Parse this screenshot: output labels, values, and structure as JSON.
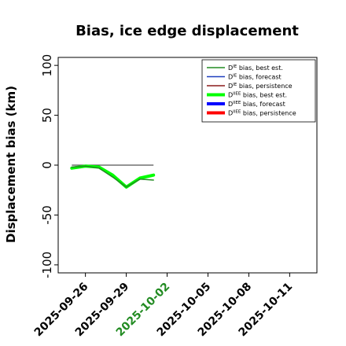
{
  "chart_data": {
    "type": "line",
    "title": "Bias, ice edge displacement",
    "ylabel": "Displacement bias (km)",
    "xlabel": "",
    "ylim": [
      -108,
      108
    ],
    "xlim": [
      "2025-09-24",
      "2025-10-13"
    ],
    "yticks": [
      -100,
      -50,
      0,
      50,
      100
    ],
    "xticks": [
      {
        "label": "2025-09-26",
        "date": "2025-09-26",
        "color": "#000000"
      },
      {
        "label": "2025-09-29",
        "date": "2025-09-29",
        "color": "#000000"
      },
      {
        "label": "2025-10-02",
        "date": "2025-10-02",
        "color": "#228b22"
      },
      {
        "label": "2025-10-05",
        "date": "2025-10-05",
        "color": "#000000"
      },
      {
        "label": "2025-10-08",
        "date": "2025-10-08",
        "color": "#000000"
      },
      {
        "label": "2025-10-11",
        "date": "2025-10-11",
        "color": "#000000"
      }
    ],
    "grid": false,
    "legend_position": "top-right",
    "series": [
      {
        "name": "D^IE bias, best est.",
        "color": "#228b22",
        "width": 1.5,
        "x": [
          "2025-09-25",
          "2025-09-26",
          "2025-09-27",
          "2025-09-28",
          "2025-09-29",
          "2025-09-30",
          "2025-10-01"
        ],
        "y": [
          -2,
          -1,
          -3,
          -12,
          -22,
          -14,
          -15
        ]
      },
      {
        "name": "D^IE bias, forecast",
        "color": "#1f3fbf",
        "width": 1.5,
        "x": [],
        "y": []
      },
      {
        "name": "D^IE bias, persistence",
        "color": "#8b1a1a",
        "width": 1.5,
        "x": [],
        "y": []
      },
      {
        "name": "D^IIEE bias, best est.",
        "color": "#00ff00",
        "width": 4,
        "x": [
          "2025-09-25",
          "2025-09-26",
          "2025-09-27",
          "2025-09-28",
          "2025-09-29",
          "2025-09-30",
          "2025-10-01"
        ],
        "y": [
          -3,
          -1,
          -2,
          -10,
          -22,
          -13,
          -10
        ]
      },
      {
        "name": "D^IIEE bias, forecast",
        "color": "#0000ff",
        "width": 4,
        "x": [],
        "y": []
      },
      {
        "name": "D^IIEE bias, persistence",
        "color": "#ff0000",
        "width": 4,
        "x": [],
        "y": []
      }
    ],
    "reference_line": {
      "y": 0,
      "x_from": "2025-09-25",
      "x_to": "2025-10-01",
      "color": "#555555"
    }
  }
}
